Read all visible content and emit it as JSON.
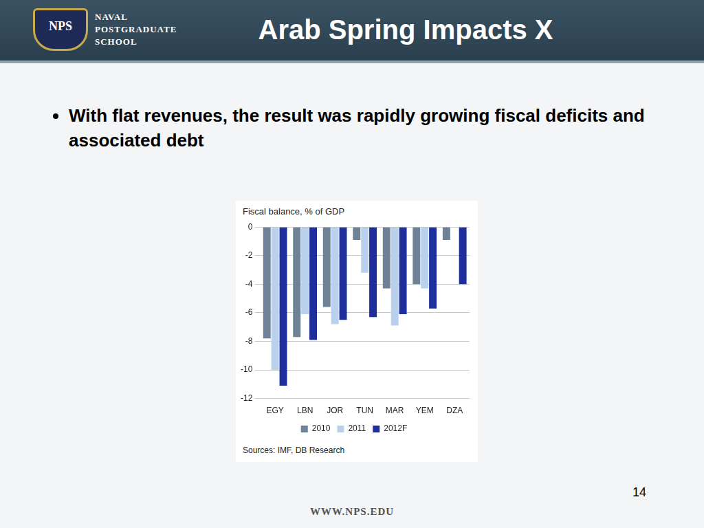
{
  "header": {
    "badge": "NPS",
    "logo": [
      "NAVAL",
      "POSTGRADUATE",
      "SCHOOL"
    ],
    "title": "Arab Spring Impacts X"
  },
  "bullets": [
    "With flat revenues, the result was rapidly growing fiscal deficits and associated debt"
  ],
  "page_number": "14",
  "footer": "WWW.NPS.EDU",
  "chart_data": {
    "type": "bar",
    "title": "Fiscal balance, % of GDP",
    "source": "Sources: IMF, DB Research",
    "categories": [
      "EGY",
      "LBN",
      "JOR",
      "TUN",
      "MAR",
      "YEM",
      "DZA"
    ],
    "series": [
      {
        "name": "2010",
        "color": "#6f8196",
        "values": [
          -7.8,
          -7.7,
          -5.6,
          -0.9,
          -4.3,
          -4.0,
          -0.9
        ]
      },
      {
        "name": "2011",
        "color": "#b9d1ec",
        "values": [
          -10.0,
          -6.1,
          -6.8,
          -3.2,
          -6.9,
          -4.3,
          null
        ]
      },
      {
        "name": "2012F",
        "color": "#1e2f9c",
        "values": [
          -11.1,
          -7.9,
          -6.5,
          -6.3,
          -6.1,
          -5.7,
          -4.0
        ]
      }
    ],
    "ylim": [
      -12,
      0
    ],
    "yticks": [
      0,
      -2,
      -4,
      -6,
      -8,
      -10,
      -12
    ],
    "grid": true,
    "legend": "bottom"
  }
}
